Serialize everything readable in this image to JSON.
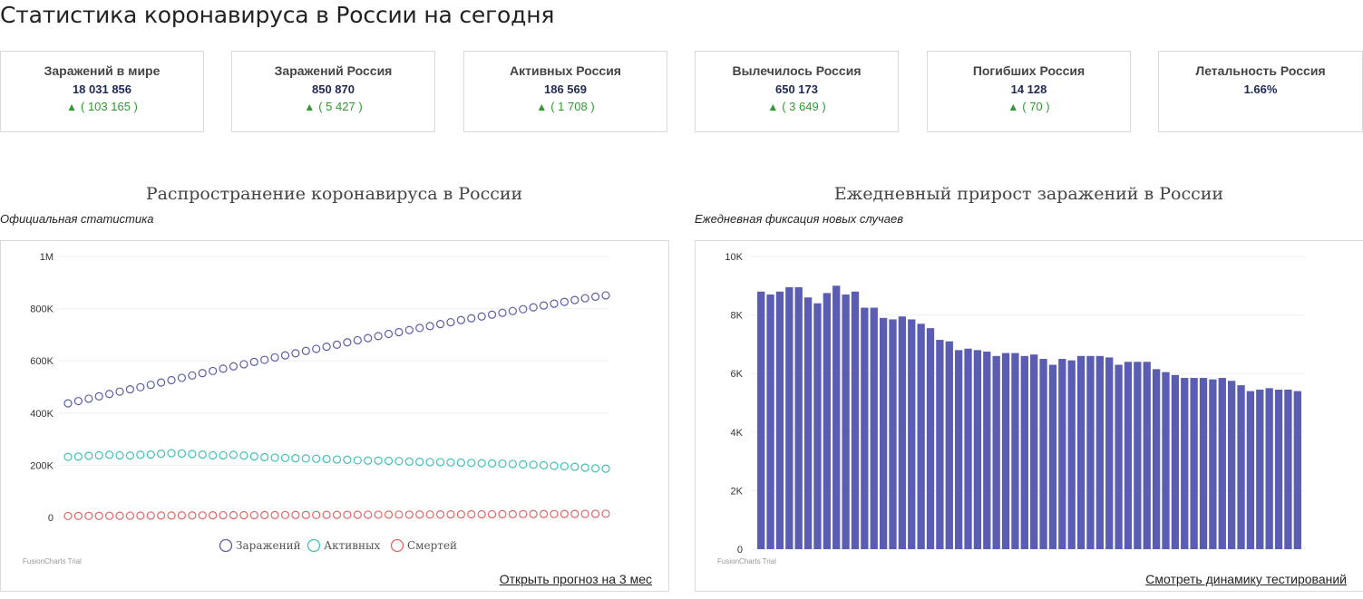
{
  "page": {
    "title": "Статистика коронавируса в России на сегодня"
  },
  "cards": [
    {
      "label": "Заражений в мире",
      "value": "18 031 856",
      "delta": "( 103 165 )"
    },
    {
      "label": "Заражений Россия",
      "value": "850 870",
      "delta": "( 5 427 )"
    },
    {
      "label": "Активных Россия",
      "value": "186 569",
      "delta": "( 1 708 )"
    },
    {
      "label": "Вылечилось Россия",
      "value": "650 173",
      "delta": "( 3 649 )"
    },
    {
      "label": "Погибших Россия",
      "value": "14 128",
      "delta": "( 70 )"
    },
    {
      "label": "Летальность Россия",
      "value": "1.66%"
    }
  ],
  "charts": {
    "spread": {
      "title": "Распространение коронавируса в России",
      "subtitle": "Официальная статистика",
      "link": "Открыть прогноз на 3 мес",
      "watermark": "FusionCharts Trial"
    },
    "daily": {
      "title": "Ежедневный прирост заражений в России",
      "subtitle": "Ежедневная фиксация новых случаев",
      "link": "Смотреть динамику тестирований",
      "watermark": "FusionCharts Trial"
    }
  },
  "colors": {
    "infections": "#5b5ea6",
    "active": "#3fc1b5",
    "deaths": "#e06666",
    "bars": "#5b5db3",
    "delta": "#2e9b2e"
  },
  "chart_data": [
    {
      "type": "line",
      "ylim": [
        0,
        1000000
      ],
      "yticks": [
        {
          "value": 0,
          "label": "0"
        },
        {
          "value": 200000,
          "label": "200K"
        },
        {
          "value": 400000,
          "label": "400K"
        },
        {
          "value": 600000,
          "label": "600K"
        },
        {
          "value": 800000,
          "label": "800K"
        },
        {
          "value": 1000000,
          "label": "1M"
        }
      ],
      "legend_position": "bottom",
      "grid": true,
      "series": [
        {
          "name": "Заражений",
          "color": "#5b5ea6",
          "values": [
            437000,
            446000,
            455000,
            464000,
            473000,
            482000,
            491000,
            499000,
            508000,
            517000,
            526000,
            535000,
            544000,
            553000,
            561000,
            570000,
            579000,
            587000,
            596000,
            604000,
            613000,
            621000,
            629000,
            638000,
            646000,
            654000,
            662000,
            671000,
            679000,
            687000,
            695000,
            703000,
            710000,
            718000,
            726000,
            733000,
            741000,
            748000,
            756000,
            763000,
            770000,
            777000,
            784000,
            791000,
            798000,
            805000,
            812000,
            819000,
            826000,
            833000,
            840000,
            846000,
            850870
          ]
        },
        {
          "name": "Активных",
          "color": "#3fc1b5",
          "values": [
            232000,
            233000,
            236000,
            238000,
            240000,
            238000,
            237000,
            240000,
            241000,
            244000,
            246000,
            245000,
            243000,
            241000,
            238000,
            238000,
            240000,
            237000,
            234000,
            231000,
            229000,
            228000,
            227000,
            226000,
            225000,
            224000,
            222000,
            221000,
            219000,
            218000,
            218000,
            217000,
            216000,
            214000,
            213000,
            212000,
            212000,
            211000,
            210000,
            209000,
            208000,
            207000,
            206000,
            205000,
            203000,
            202000,
            200000,
            198000,
            196000,
            194000,
            191000,
            188000,
            186569
          ]
        },
        {
          "name": "Смертей",
          "color": "#e06666",
          "values": [
            5500,
            5700,
            5900,
            6100,
            6300,
            6500,
            6700,
            6900,
            7100,
            7300,
            7500,
            7700,
            7900,
            8100,
            8300,
            8450,
            8600,
            8750,
            8900,
            9050,
            9200,
            9350,
            9500,
            9650,
            9800,
            9950,
            10100,
            10250,
            10400,
            10550,
            10700,
            10850,
            11000,
            11150,
            11300,
            11450,
            11600,
            11750,
            11900,
            12050,
            12200,
            12350,
            12500,
            12650,
            12800,
            12950,
            13100,
            13250,
            13400,
            13550,
            13700,
            13900,
            14128
          ]
        }
      ]
    },
    {
      "type": "bar",
      "ylim": [
        0,
        10000
      ],
      "yticks": [
        {
          "value": 0,
          "label": "0"
        },
        {
          "value": 2000,
          "label": "2K"
        },
        {
          "value": 4000,
          "label": "4K"
        },
        {
          "value": 6000,
          "label": "6K"
        },
        {
          "value": 8000,
          "label": "8K"
        },
        {
          "value": 10000,
          "label": "10K"
        }
      ],
      "grid": true,
      "values": [
        8800,
        8700,
        8800,
        8950,
        8950,
        8600,
        8400,
        8750,
        9000,
        8700,
        8800,
        8250,
        8250,
        7900,
        7850,
        7950,
        7850,
        7700,
        7550,
        7150,
        7100,
        6800,
        6850,
        6800,
        6750,
        6600,
        6700,
        6700,
        6600,
        6650,
        6500,
        6300,
        6500,
        6450,
        6600,
        6600,
        6600,
        6550,
        6300,
        6400,
        6400,
        6400,
        6150,
        6050,
        5950,
        5850,
        5850,
        5850,
        5800,
        5850,
        5750,
        5600,
        5400,
        5450,
        5500,
        5450,
        5450,
        5400
      ]
    }
  ]
}
